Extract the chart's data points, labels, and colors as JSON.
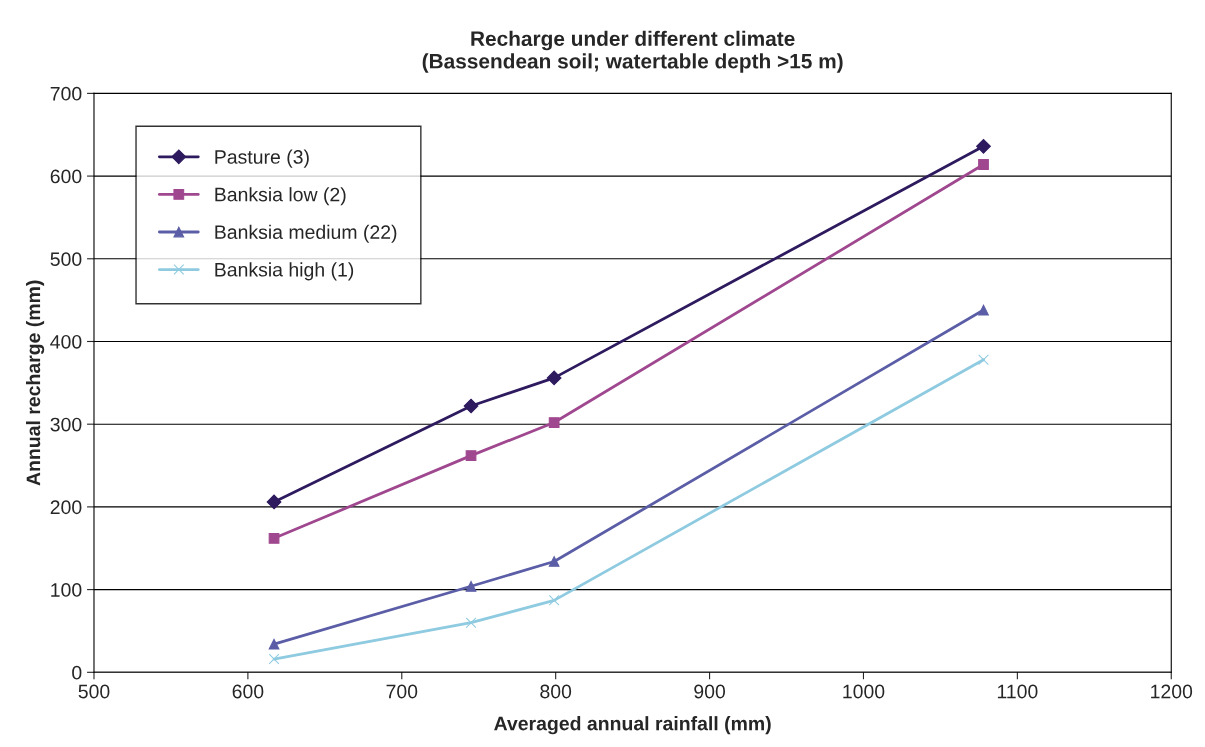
{
  "chart_data": {
    "type": "line",
    "title": "Recharge under different climate\n(Bassendean soil; watertable depth >15 m)",
    "xlabel": "Averaged annual rainfall (mm)",
    "ylabel": "Annual recharge (mm)",
    "x": [
      617,
      745,
      799,
      1078
    ],
    "series": [
      {
        "name": "Pasture (3)",
        "color": "#2e1a5e",
        "marker": "diamond",
        "values": [
          206,
          322,
          356,
          636
        ]
      },
      {
        "name": "Banksia low (2)",
        "color": "#a0488f",
        "marker": "square",
        "values": [
          162,
          262,
          302,
          614
        ]
      },
      {
        "name": "Banksia medium (22)",
        "color": "#5b5ea6",
        "marker": "triangle",
        "values": [
          34,
          104,
          134,
          438
        ]
      },
      {
        "name": "Banksia high (1)",
        "color": "#8ecae0",
        "marker": "cross",
        "values": [
          16,
          60,
          87,
          378
        ]
      }
    ],
    "xlim": [
      500,
      1200
    ],
    "xticks": [
      500,
      600,
      700,
      800,
      900,
      1000,
      1100,
      1200
    ],
    "ylim": [
      0,
      700
    ],
    "yticks": [
      0,
      100,
      200,
      300,
      400,
      500,
      600,
      700
    ],
    "grid": "y",
    "legend": "top left"
  }
}
